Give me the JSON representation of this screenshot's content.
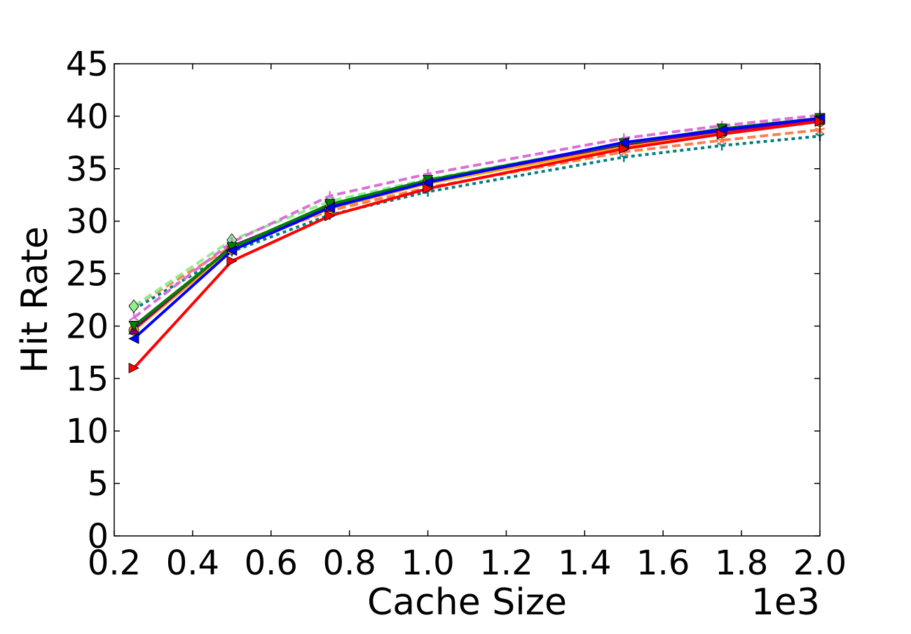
{
  "chart_data": {
    "type": "line",
    "title": "",
    "xlabel": "Cache Size",
    "ylabel": "Hit Rate",
    "x_offset_text": "1e3",
    "xlim": [
      0.2,
      2.0
    ],
    "ylim": [
      0,
      45
    ],
    "x_ticks": [
      "0.2",
      "0.4",
      "0.6",
      "0.8",
      "1.0",
      "1.2",
      "1.4",
      "1.6",
      "1.8",
      "2.0"
    ],
    "y_ticks": [
      "0",
      "5",
      "10",
      "15",
      "20",
      "25",
      "30",
      "35",
      "40",
      "45"
    ],
    "grid": false,
    "legend": "none",
    "x": [
      0.25,
      0.5,
      0.75,
      1.0,
      1.5,
      1.75,
      2.0
    ],
    "series": [
      {
        "color": "#008080",
        "dash": "dotted",
        "marker": "tri-down",
        "values": [
          21.6,
          27.1,
          30.6,
          32.8,
          36.1,
          37.2,
          38.1
        ]
      },
      {
        "color": "#FF7F50",
        "dash": "dashed",
        "marker": "star",
        "values": [
          21.9,
          27.6,
          31.0,
          33.2,
          36.6,
          37.7,
          38.7
        ]
      },
      {
        "color": "#90EE90",
        "dash": "dashed",
        "marker": "diamond",
        "values": [
          21.9,
          28.2,
          31.9,
          34.0,
          37.4,
          38.6,
          39.6
        ]
      },
      {
        "color": "#DA70D6",
        "dash": "dashed",
        "marker": "tri-up",
        "values": [
          20.8,
          28.0,
          32.4,
          34.5,
          37.9,
          39.1,
          40.1
        ]
      },
      {
        "color": "#FFA500",
        "dash": "solid",
        "marker": "circle",
        "values": [
          19.6,
          27.3,
          31.2,
          33.6,
          37.1,
          38.4,
          39.5
        ]
      },
      {
        "color": "#800080",
        "dash": "solid",
        "marker": "triangle-up",
        "values": [
          19.7,
          27.6,
          31.4,
          33.8,
          37.3,
          38.6,
          39.7
        ]
      },
      {
        "color": "#008000",
        "dash": "solid",
        "marker": "triangle-down",
        "values": [
          20.0,
          27.5,
          31.6,
          33.9,
          37.4,
          38.8,
          39.8
        ]
      },
      {
        "color": "#0000FF",
        "dash": "solid",
        "marker": "triangle-left",
        "values": [
          18.8,
          27.2,
          31.3,
          33.7,
          37.5,
          38.7,
          39.8
        ]
      },
      {
        "color": "#FF0000",
        "dash": "solid",
        "marker": "triangle-right",
        "values": [
          16.0,
          26.2,
          30.5,
          33.1,
          36.9,
          38.3,
          39.5
        ]
      }
    ]
  }
}
